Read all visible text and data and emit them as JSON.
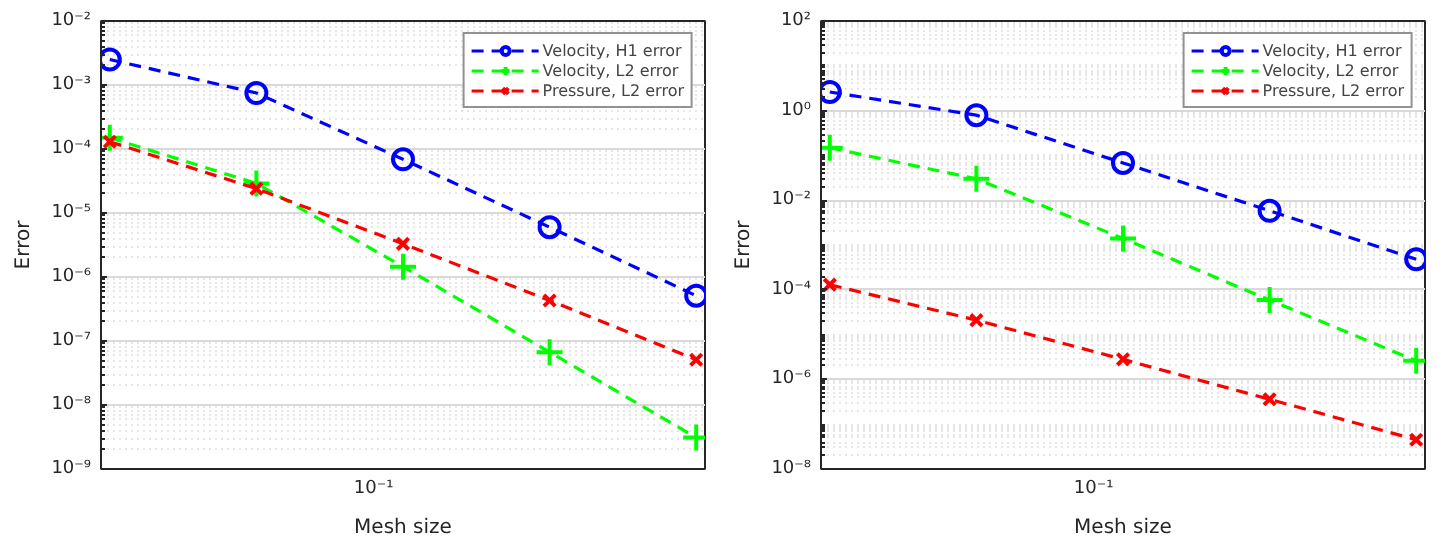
{
  "chart_data": [
    {
      "type": "line",
      "xlabel": "Mesh size",
      "ylabel": "Error",
      "log": "y",
      "grid": "y",
      "legend": "top right",
      "line_style": "dashed",
      "categories": [
        null,
        null,
        null,
        null,
        null
      ],
      "annotations": [
        "10⁻¹"
      ],
      "ylim": [
        1e-09,
        0.01
      ],
      "yticks": [
        {
          "value": 1e-09,
          "label": "10⁻⁹"
        },
        {
          "value": 1e-08,
          "label": "10⁻⁸"
        },
        {
          "value": 1e-07,
          "label": "10⁻⁷"
        },
        {
          "value": 1e-06,
          "label": "10⁻⁶"
        },
        {
          "value": 1e-05,
          "label": "10⁻⁵"
        },
        {
          "value": 0.0001,
          "label": "10⁻⁴"
        },
        {
          "value": 0.001,
          "label": "10⁻³"
        },
        {
          "value": 0.01,
          "label": "10⁻²"
        }
      ],
      "series": [
        {
          "name": "Velocity, H1 error",
          "color": "#0000ff",
          "marker": "circle",
          "values": [
            0.0025,
            0.00075,
            6.9e-05,
            6e-06,
            5.1e-07
          ]
        },
        {
          "name": "Velocity, L2 error",
          "color": "#00ff00",
          "marker": "cross",
          "values": [
            0.00015,
            2.9e-05,
            1.45e-06,
            6.7e-08,
            3.1e-09
          ]
        },
        {
          "name": "Pressure, L2 error",
          "color": "#ff0000",
          "marker": "x",
          "values": [
            0.00013,
            2.4e-05,
            3.3e-06,
            4.3e-07,
            5.1e-08
          ]
        }
      ]
    },
    {
      "type": "line",
      "xlabel": "Mesh size",
      "ylabel": "Error",
      "log": "y",
      "grid": "y",
      "legend": "top right",
      "line_style": "dashed",
      "categories": [
        null,
        null,
        null,
        null,
        null
      ],
      "annotations": [
        "10⁻¹"
      ],
      "ylim": [
        1e-08,
        100.0
      ],
      "yticks": [
        {
          "value": 1e-08,
          "label": "10⁻⁸"
        },
        {
          "value": 1e-06,
          "label": "10⁻⁶"
        },
        {
          "value": 0.0001,
          "label": "10⁻⁴"
        },
        {
          "value": 0.01,
          "label": "10⁻²"
        },
        {
          "value": 1,
          "label": "10⁰"
        },
        {
          "value": 100,
          "label": "10²"
        }
      ],
      "series": [
        {
          "name": "Velocity, H1 error",
          "color": "#0000ff",
          "marker": "circle",
          "values": [
            2.6,
            0.79,
            0.068,
            0.0058,
            0.00048
          ]
        },
        {
          "name": "Velocity, L2 error",
          "color": "#00ff00",
          "marker": "cross",
          "values": [
            0.148,
            0.03,
            0.0014,
            5.9e-05,
            2.6e-06
          ]
        },
        {
          "name": "Pressure, L2 error",
          "color": "#ff0000",
          "marker": "x",
          "values": [
            0.00013,
            2.1e-05,
            2.8e-06,
            3.6e-07,
            4.5e-08
          ]
        }
      ]
    }
  ]
}
